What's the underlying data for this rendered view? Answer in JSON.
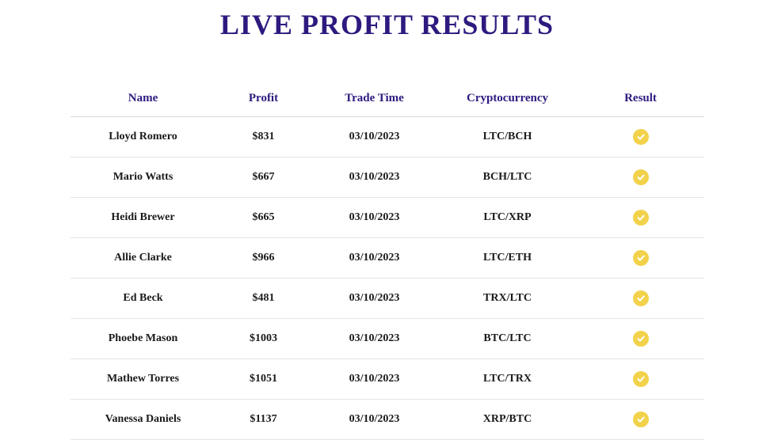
{
  "title": "LIVE PROFIT RESULTS",
  "columns": [
    "Name",
    "Profit",
    "Trade Time",
    "Cryptocurrency",
    "Result"
  ],
  "icon_bg": "#f2d24b",
  "icon_check_color": "#ffffff",
  "title_color": "#2e1a7f",
  "header_color": "#2e1a7f",
  "cell_color": "#1a1a1a",
  "row_border_color": "#e5e5e5",
  "rows": [
    {
      "name": "Lloyd Romero",
      "profit": "$831",
      "time": "03/10/2023",
      "crypto": "LTC/BCH",
      "result": "success"
    },
    {
      "name": "Mario Watts",
      "profit": "$667",
      "time": "03/10/2023",
      "crypto": "BCH/LTC",
      "result": "success"
    },
    {
      "name": "Heidi Brewer",
      "profit": "$665",
      "time": "03/10/2023",
      "crypto": "LTC/XRP",
      "result": "success"
    },
    {
      "name": "Allie Clarke",
      "profit": "$966",
      "time": "03/10/2023",
      "crypto": "LTC/ETH",
      "result": "success"
    },
    {
      "name": "Ed Beck",
      "profit": "$481",
      "time": "03/10/2023",
      "crypto": "TRX/LTC",
      "result": "success"
    },
    {
      "name": "Phoebe Mason",
      "profit": "$1003",
      "time": "03/10/2023",
      "crypto": "BTC/LTC",
      "result": "success"
    },
    {
      "name": "Mathew Torres",
      "profit": "$1051",
      "time": "03/10/2023",
      "crypto": "LTC/TRX",
      "result": "success"
    },
    {
      "name": "Vanessa Daniels",
      "profit": "$1137",
      "time": "03/10/2023",
      "crypto": "XRP/BTC",
      "result": "success"
    }
  ]
}
